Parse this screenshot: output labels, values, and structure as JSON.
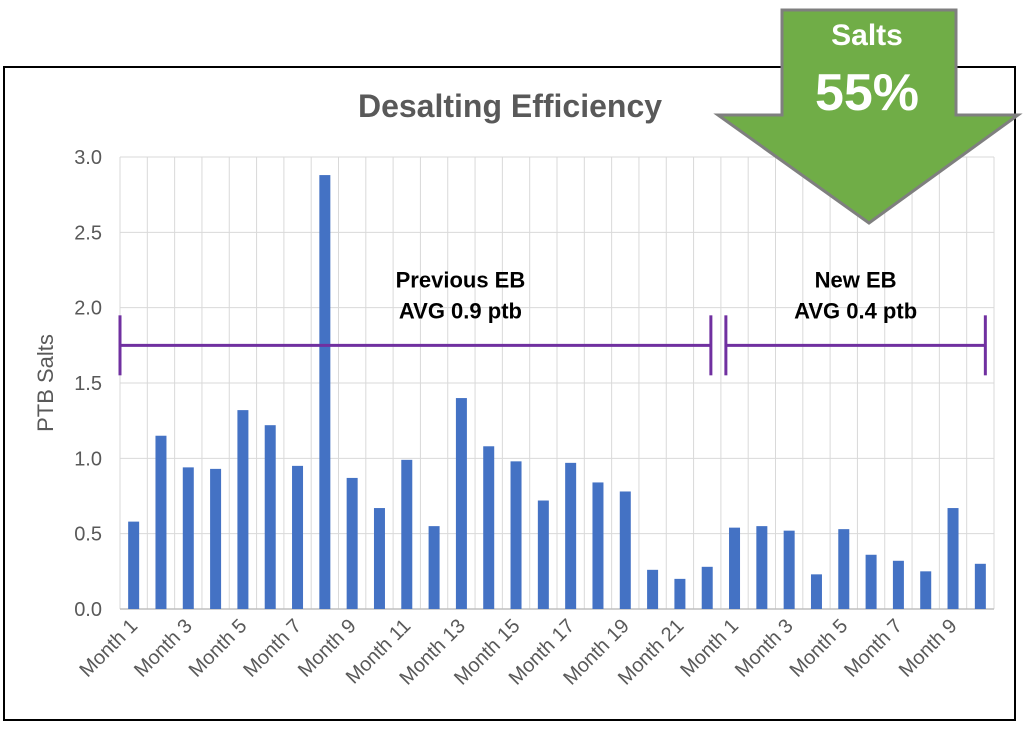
{
  "chart_data": {
    "type": "bar",
    "title": "Desalting Efficiency",
    "xlabel": "",
    "ylabel": "PTB Salts",
    "ylim": [
      0,
      3.0
    ],
    "yticks": [
      "0.0",
      "0.5",
      "1.0",
      "1.5",
      "2.0",
      "2.5",
      "3.0"
    ],
    "grid": true,
    "categories": [
      "Month 1",
      "Month 2",
      "Month 3",
      "Month 4",
      "Month 5",
      "Month 6",
      "Month 7",
      "Month 8",
      "Month 9",
      "Month 10",
      "Month 11",
      "Month 12",
      "Month 13",
      "Month 14",
      "Month 15",
      "Month 16",
      "Month 17",
      "Month 18",
      "Month 19",
      "Month 20",
      "Month 21",
      "Month 22",
      "Month 1",
      "Month 2",
      "Month 3",
      "Month 4",
      "Month 5",
      "Month 6",
      "Month 7",
      "Month 8",
      "Month 9",
      "Month 10"
    ],
    "visible_tick_labels": [
      "Month 1",
      "Month 3",
      "Month 5",
      "Month 7",
      "Month 9",
      "Month 11",
      "Month 13",
      "Month 15",
      "Month 17",
      "Month 19",
      "Month 21",
      "Month 1",
      "Month 3",
      "Month 5",
      "Month 7",
      "Month 9"
    ],
    "series": [
      {
        "name": "PTB Salts",
        "color": "#4472C4",
        "values": [
          0.58,
          1.15,
          0.94,
          0.93,
          1.32,
          1.22,
          0.95,
          2.88,
          0.87,
          0.67,
          0.99,
          0.55,
          1.4,
          1.08,
          0.98,
          0.72,
          0.97,
          0.84,
          0.78,
          0.26,
          0.2,
          0.28,
          0.54,
          0.55,
          0.52,
          0.23,
          0.53,
          0.36,
          0.32,
          0.25,
          0.67,
          0.3
        ]
      }
    ],
    "annotations": [
      {
        "name": "previous-eb",
        "line1": "Previous EB",
        "line2": "AVG 0.9 ptb",
        "value": 1.75,
        "from_index": 0,
        "to_index": 21,
        "color": "#7030A0"
      },
      {
        "name": "new-eb",
        "line1": "New EB",
        "line2": "AVG 0.4 ptb",
        "value": 1.75,
        "from_index": 22,
        "to_index": 31,
        "color": "#7030A0"
      }
    ],
    "callout": {
      "label": "Salts",
      "value": "55%",
      "direction": "down",
      "color": "#70AD47"
    }
  }
}
